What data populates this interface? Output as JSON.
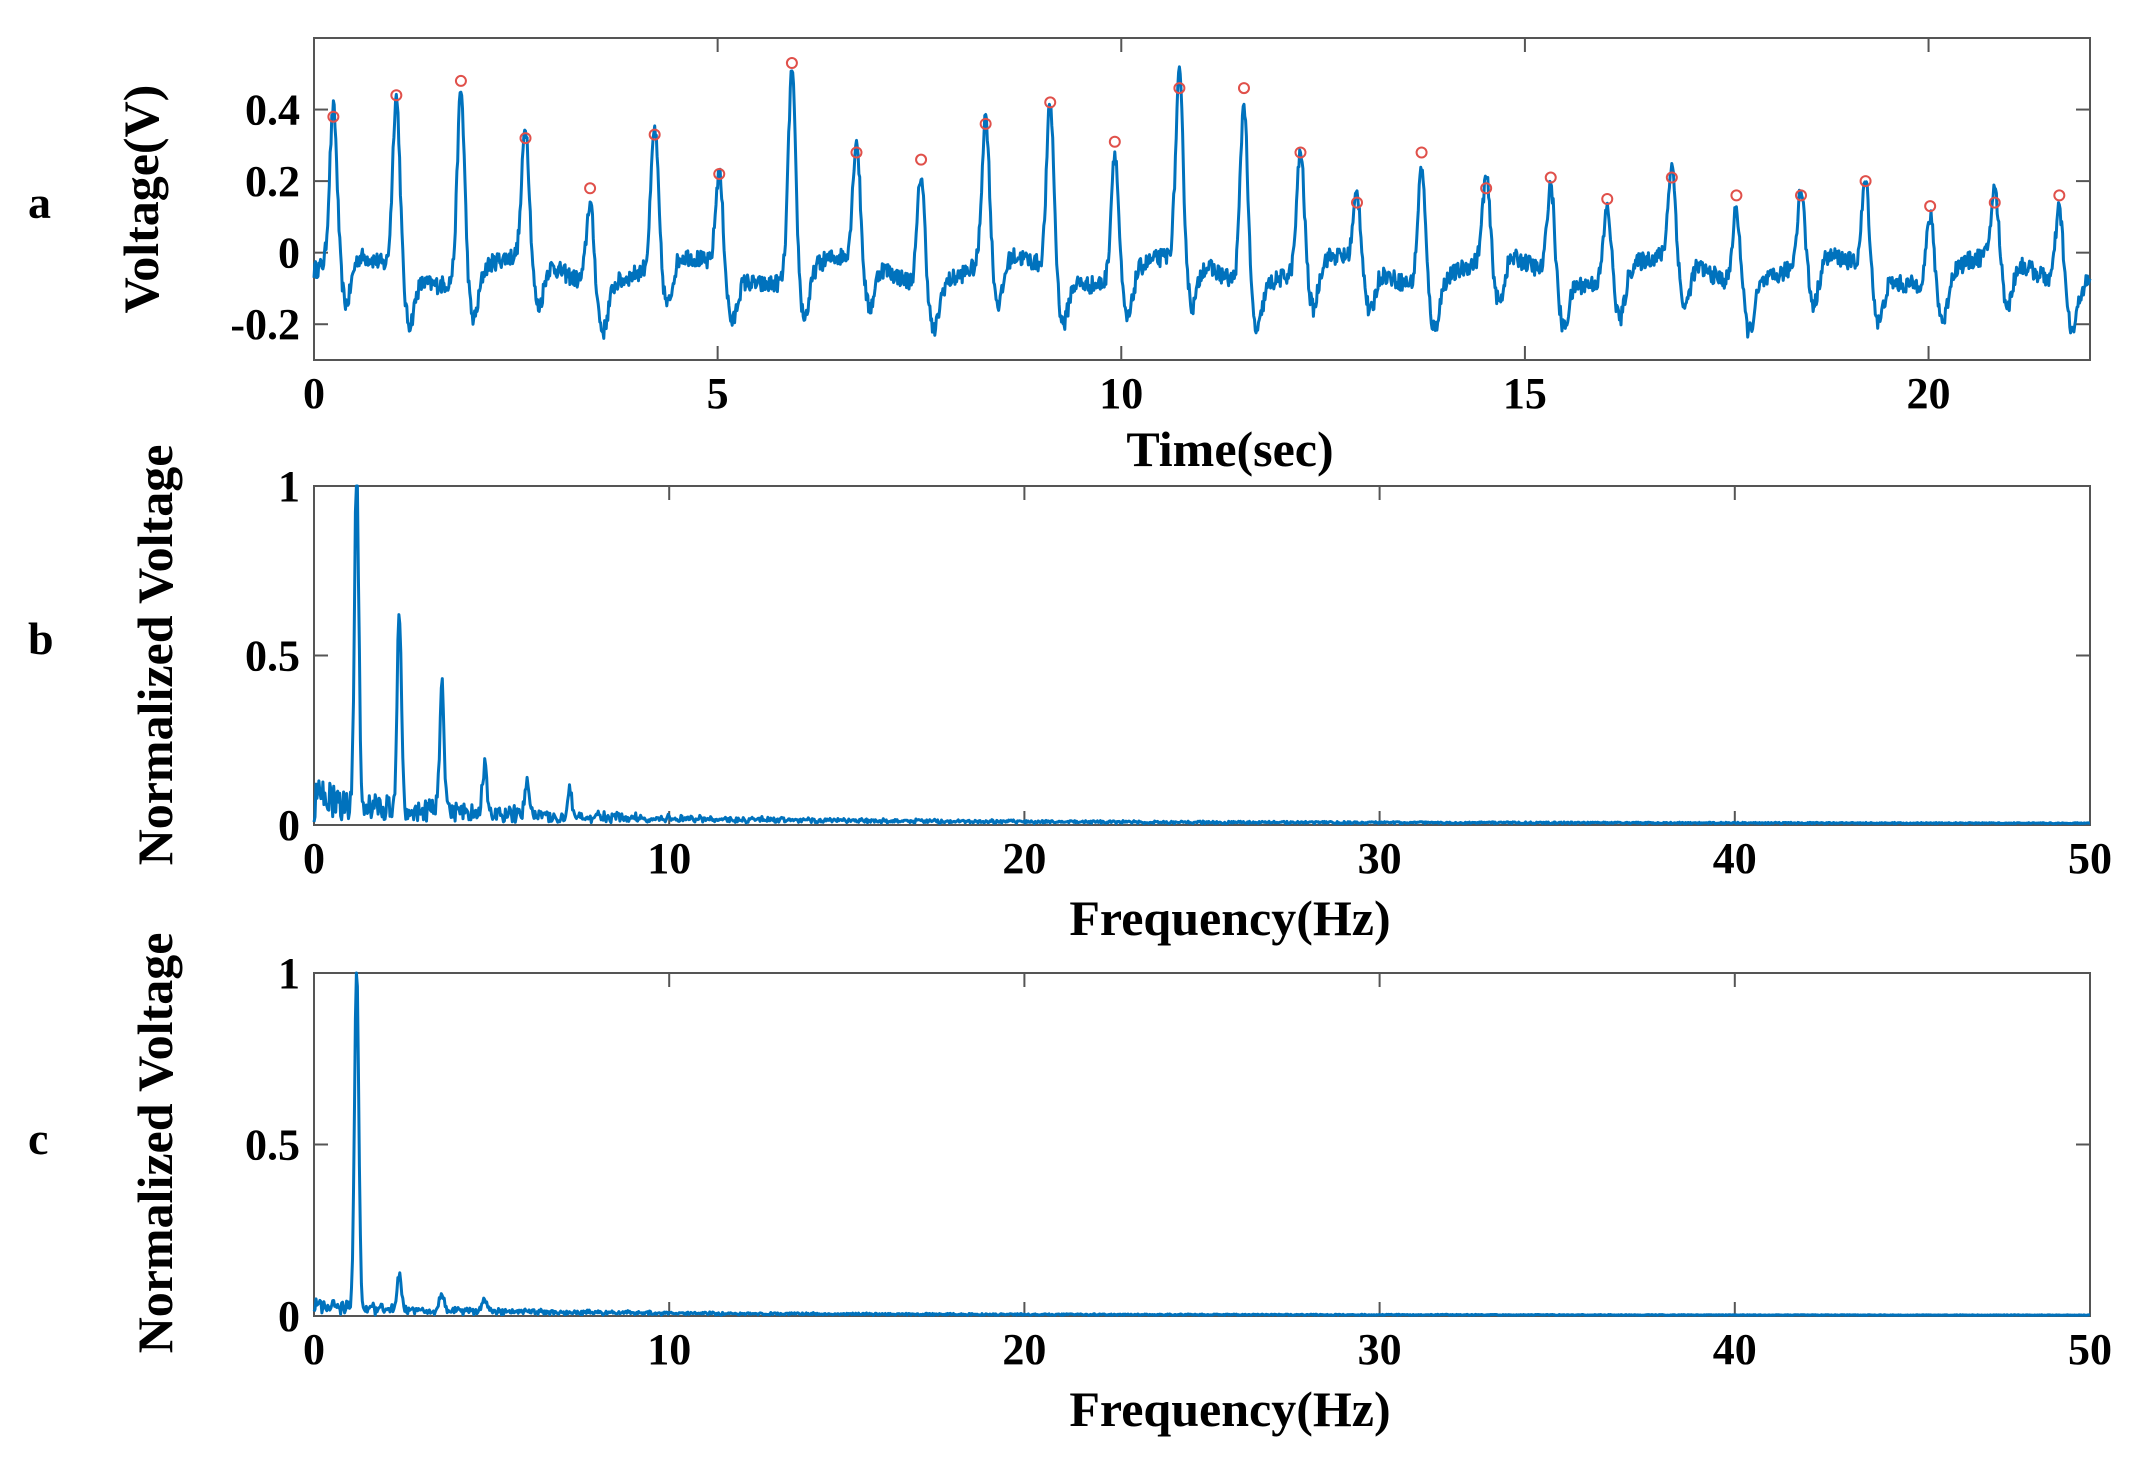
{
  "chart_data": [
    {
      "panel": "a",
      "type": "line",
      "xlabel": "Time(sec)",
      "ylabel": "Voltage(V)",
      "xlim": [
        0,
        22
      ],
      "ylim": [
        -0.3,
        0.6
      ],
      "xticks": [
        0,
        5,
        10,
        15,
        20
      ],
      "xtick_labels": [
        "0",
        "5",
        "10",
        "15",
        "20"
      ],
      "yticks": [
        -0.2,
        0,
        0.2,
        0.4
      ],
      "ytick_labels": [
        "-0.2",
        "0",
        "0.2",
        "0.4"
      ],
      "line_color": "#0072BD",
      "marker_color": "#E0504A",
      "peaks": {
        "x": [
          0.24,
          1.02,
          1.82,
          2.62,
          3.42,
          4.22,
          5.02,
          5.92,
          6.72,
          7.52,
          8.32,
          9.12,
          9.92,
          10.72,
          11.52,
          12.22,
          12.92,
          13.72,
          14.52,
          15.32,
          16.02,
          16.82,
          17.62,
          18.42,
          19.22,
          20.02,
          20.82,
          21.62
        ],
        "y": [
          0.38,
          0.44,
          0.48,
          0.32,
          0.18,
          0.33,
          0.22,
          0.53,
          0.28,
          0.26,
          0.36,
          0.42,
          0.31,
          0.46,
          0.46,
          0.28,
          0.14,
          0.28,
          0.18,
          0.21,
          0.15,
          0.21,
          0.16,
          0.16,
          0.2,
          0.13,
          0.14,
          0.16
        ]
      }
    },
    {
      "panel": "b",
      "type": "line",
      "xlabel": "Frequency(Hz)",
      "ylabel": "Normalized Voltage",
      "xlim": [
        0,
        50
      ],
      "ylim": [
        0,
        1
      ],
      "xticks": [
        0,
        10,
        20,
        30,
        40,
        50
      ],
      "xtick_labels": [
        "0",
        "10",
        "20",
        "30",
        "40",
        "50"
      ],
      "yticks": [
        0,
        0.5,
        1
      ],
      "ytick_labels": [
        "0",
        "0.5",
        "1"
      ],
      "line_color": "#0072BD",
      "spectrum_peaks": {
        "x": [
          1.2,
          2.4,
          3.6,
          4.8,
          6.0,
          7.2
        ],
        "y": [
          1.0,
          0.58,
          0.37,
          0.14,
          0.1,
          0.08
        ]
      },
      "noise_floor": 0.02
    },
    {
      "panel": "c",
      "type": "line",
      "xlabel": "Frequency(Hz)",
      "ylabel": "Normalized Voltage",
      "xlim": [
        0,
        50
      ],
      "ylim": [
        0,
        1
      ],
      "xticks": [
        0,
        10,
        20,
        30,
        40,
        50
      ],
      "xtick_labels": [
        "0",
        "10",
        "20",
        "30",
        "40",
        "50"
      ],
      "yticks": [
        0,
        0.5,
        1
      ],
      "ytick_labels": [
        "0",
        "0.5",
        "1"
      ],
      "line_color": "#0072BD",
      "spectrum_peaks": {
        "x": [
          1.2,
          2.4,
          3.6,
          4.8
        ],
        "y": [
          1.0,
          0.11,
          0.05,
          0.04
        ]
      },
      "noise_floor": 0.01
    }
  ]
}
